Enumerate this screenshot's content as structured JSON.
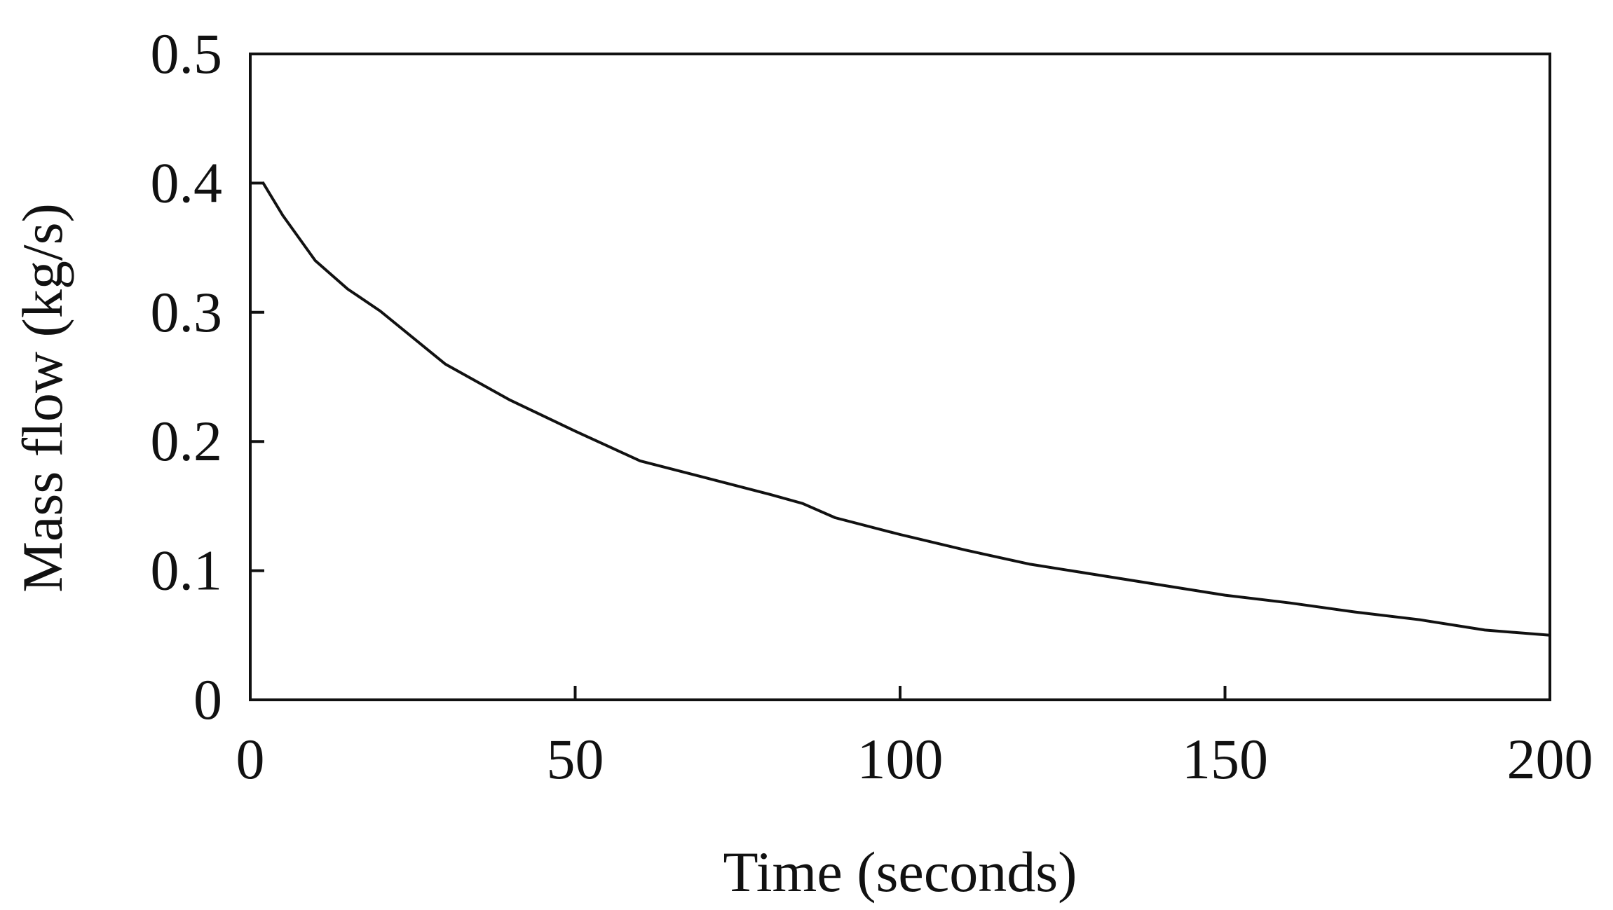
{
  "chart_data": {
    "type": "line",
    "title": "",
    "xlabel": "Time (seconds)",
    "ylabel": "Mass flow (kg/s)",
    "xlim": [
      0,
      200
    ],
    "ylim": [
      0,
      0.5
    ],
    "x_ticks": [
      0,
      50,
      100,
      150,
      200
    ],
    "x_tick_labels": [
      "0",
      "50",
      "100",
      "150",
      "200"
    ],
    "y_ticks": [
      0,
      0.1,
      0.2,
      0.3,
      0.4,
      0.5
    ],
    "y_tick_labels": [
      "0",
      "0.1",
      "0.2",
      "0.3",
      "0.4",
      "0.5"
    ],
    "grid": false,
    "legend": "none",
    "series": [
      {
        "color": "#111111",
        "x": [
          2,
          5,
          10,
          15,
          20,
          30,
          40,
          50,
          60,
          70,
          80,
          85,
          90,
          100,
          110,
          120,
          130,
          140,
          150,
          160,
          170,
          180,
          190,
          200
        ],
        "y": [
          0.4,
          0.375,
          0.34,
          0.318,
          0.301,
          0.26,
          0.232,
          0.208,
          0.185,
          0.172,
          0.159,
          0.152,
          0.141,
          0.128,
          0.116,
          0.105,
          0.097,
          0.089,
          0.081,
          0.075,
          0.068,
          0.062,
          0.054,
          0.05
        ]
      }
    ]
  }
}
